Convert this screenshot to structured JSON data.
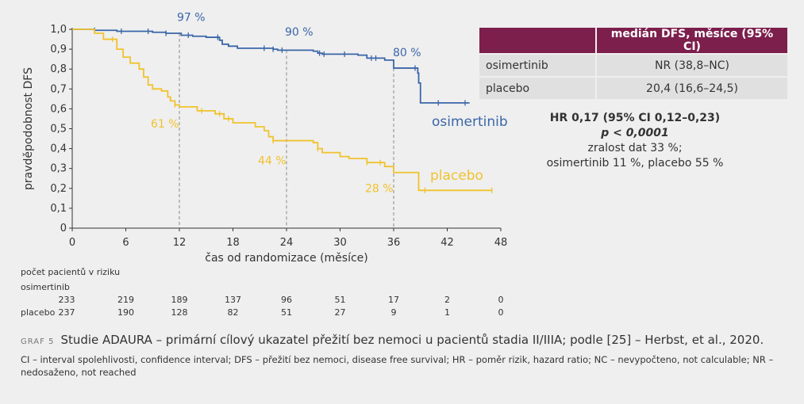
{
  "chart_data": {
    "type": "line",
    "ylabel": "pravděpodobnost DFS",
    "xlabel": "čas od randomizace (měsíce)",
    "xlim": [
      0,
      48
    ],
    "ylim": [
      0,
      1
    ],
    "x_ticks": [
      "0",
      "6",
      "12",
      "18",
      "24",
      "30",
      "36",
      "42",
      "48"
    ],
    "y_ticks": [
      "0",
      "0,1",
      "0,2",
      "0,3",
      "0,4",
      "0,5",
      "0,6",
      "0,7",
      "0,8",
      "0,9",
      "1,0"
    ],
    "reference_months": [
      12,
      24,
      36
    ],
    "series": [
      {
        "name": "osimertinib",
        "color": "#3a66a8",
        "x": [
          0,
          2.5,
          5,
          9,
          10.5,
          12.2,
          13.5,
          15,
          16.5,
          16.8,
          17.5,
          18.5,
          21,
          22.5,
          23,
          27,
          27.5,
          28,
          30,
          32,
          33,
          35,
          36,
          38.5,
          38.7,
          38.8,
          39,
          44.5
        ],
        "y": [
          1.0,
          0.995,
          0.99,
          0.985,
          0.98,
          0.97,
          0.965,
          0.96,
          0.945,
          0.925,
          0.915,
          0.905,
          0.905,
          0.9,
          0.895,
          0.89,
          0.88,
          0.875,
          0.875,
          0.87,
          0.855,
          0.845,
          0.805,
          0.805,
          0.78,
          0.73,
          0.63,
          0.63
        ],
        "censored_x": [
          2.5,
          5.5,
          8.5,
          10.5,
          13,
          16.3,
          21.5,
          22.5,
          23.5,
          27.7,
          28.2,
          30.5,
          33.5,
          34,
          38.4,
          41,
          44
        ]
      },
      {
        "name": "placebo",
        "color": "#f0c22d",
        "x": [
          0,
          2.5,
          3.5,
          5,
          5.7,
          6.5,
          7.5,
          8,
          8.5,
          9,
          10,
          10.7,
          11,
          11.5,
          12,
          14,
          16,
          17,
          18,
          20.5,
          21.5,
          22,
          22.5,
          23.5,
          27,
          27.5,
          28,
          30,
          31,
          33,
          35,
          36,
          38.5,
          38.8,
          47
        ],
        "y": [
          1.0,
          0.98,
          0.95,
          0.9,
          0.86,
          0.83,
          0.8,
          0.76,
          0.72,
          0.7,
          0.69,
          0.66,
          0.64,
          0.62,
          0.61,
          0.59,
          0.575,
          0.55,
          0.53,
          0.51,
          0.49,
          0.46,
          0.44,
          0.44,
          0.43,
          0.4,
          0.38,
          0.36,
          0.35,
          0.33,
          0.31,
          0.28,
          0.28,
          0.19,
          0.19
        ],
        "censored_x": [
          4.5,
          11.5,
          14.5,
          16.5,
          17.5,
          22.5,
          27.5,
          33,
          34.5,
          39.5,
          47
        ]
      }
    ],
    "annotations": [
      {
        "text": "97 %",
        "series": "osimertinib",
        "x": 12,
        "y": 0.97
      },
      {
        "text": "90 %",
        "series": "osimertinib",
        "x": 24,
        "y": 0.9
      },
      {
        "text": "80 %",
        "series": "osimertinib",
        "x": 36,
        "y": 0.8
      },
      {
        "text": "61 %",
        "series": "placebo",
        "x": 12,
        "y": 0.61
      },
      {
        "text": "44 %",
        "series": "placebo",
        "x": 24,
        "y": 0.44
      },
      {
        "text": "28 %",
        "series": "placebo",
        "x": 36,
        "y": 0.28
      }
    ],
    "series_labels": [
      "osimertinib",
      "placebo"
    ]
  },
  "risk_table": {
    "title": "počet pacientů v riziku",
    "months": [
      0,
      6,
      12,
      18,
      24,
      30,
      36,
      42,
      48
    ],
    "rows": [
      {
        "label": "osimertinib",
        "values": [
          "233",
          "219",
          "189",
          "137",
          "96",
          "51",
          "17",
          "2",
          "0"
        ]
      },
      {
        "label": "placebo",
        "values": [
          "237",
          "190",
          "128",
          "82",
          "51",
          "27",
          "9",
          "1",
          "0"
        ]
      }
    ]
  },
  "dfs_table": {
    "header": "medián DFS, měsíce (95% CI)",
    "rows": [
      {
        "drug": "osimertinib",
        "value": "NR (38,8–NC)"
      },
      {
        "drug": "placebo",
        "value": "20,4 (16,6–24,5)"
      }
    ]
  },
  "stats": {
    "hr": "HR 0,17 (95% CI 0,12–0,23)",
    "p": "p < 0,0001",
    "maturity": "zralost dat 33 %;",
    "maturity2": "osimertinib 11 %, placebo 55 %"
  },
  "caption": {
    "tag": "GRAF 5",
    "text": "Studie ADAURA – primární cílový ukazatel přežití bez nemoci u pacientů stadia II/IIIA; podle [25] – Herbst, et al., 2020."
  },
  "footnote": "CI – interval spolehlivosti, confidence interval; DFS – přežití bez nemoci, disease free survival; HR – poměr rizik, hazard ratio; NC – nevypočteno, not calculable; NR – nedo­saženo, not reached"
}
